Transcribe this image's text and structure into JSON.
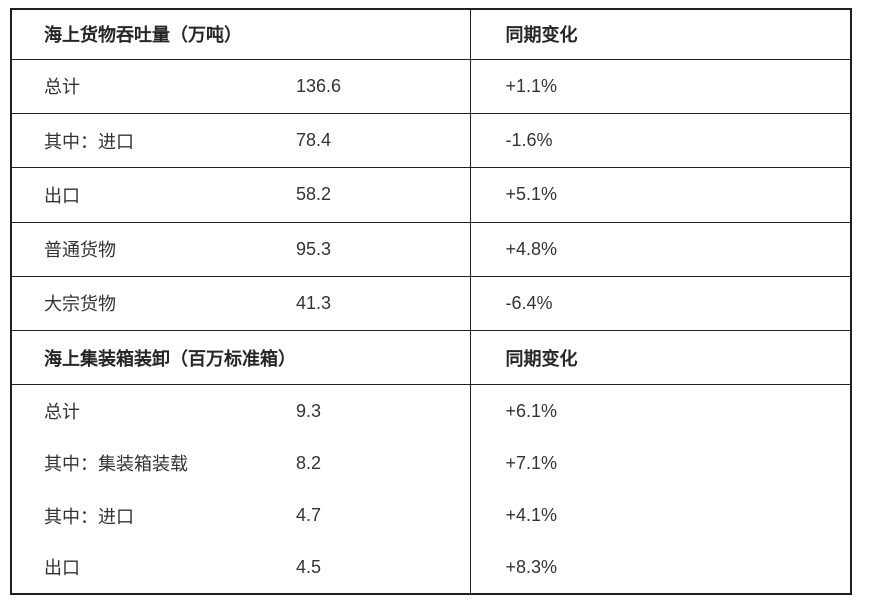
{
  "colors": {
    "background": "#ffffff",
    "border": "#1f1f1f",
    "text": "#333333",
    "header_text": "#262626"
  },
  "table": {
    "sections": [
      {
        "header": {
          "title": "海上货物吞吐量（万吨）",
          "change_label": "同期变化"
        },
        "rows": [
          {
            "label": "总计",
            "value": "136.6",
            "change": "+1.1%"
          },
          {
            "label": "其中：进口",
            "value": "78.4",
            "change": "-1.6%"
          },
          {
            "label": "出口",
            "value": "58.2",
            "change": "+5.1%"
          },
          {
            "label": "普通货物",
            "value": "95.3",
            "change": "+4.8%"
          },
          {
            "label": "大宗货物",
            "value": "41.3",
            "change": "-6.4%"
          }
        ]
      },
      {
        "header": {
          "title": "海上集装箱装卸（百万标准箱）",
          "change_label": "同期变化"
        },
        "rows": [
          {
            "label": "总计",
            "value": "9.3",
            "change": "+6.1%"
          },
          {
            "label": "其中：集装箱装载",
            "value": "8.2",
            "change": "+7.1%"
          },
          {
            "label": "其中：进口",
            "value": "4.7",
            "change": "+4.1%"
          },
          {
            "label": "出口",
            "value": "4.5",
            "change": "+8.3%"
          }
        ]
      }
    ]
  },
  "chart_data": {
    "type": "table",
    "sections": [
      {
        "header": [
          "海上货物吞吐量（万吨）",
          "同期变化"
        ],
        "rows": [
          [
            "总计",
            136.6,
            "+1.1%"
          ],
          [
            "其中：进口",
            78.4,
            "-1.6%"
          ],
          [
            "出口",
            58.2,
            "+5.1%"
          ],
          [
            "普通货物",
            95.3,
            "+4.8%"
          ],
          [
            "大宗货物",
            41.3,
            "-6.4%"
          ]
        ]
      },
      {
        "header": [
          "海上集装箱装卸（百万标准箱）",
          "同期变化"
        ],
        "rows": [
          [
            "总计",
            9.3,
            "+6.1%"
          ],
          [
            "其中：集装箱装载",
            8.2,
            "+7.1%"
          ],
          [
            "其中：进口",
            4.7,
            "+4.1%"
          ],
          [
            "出口",
            4.5,
            "+8.3%"
          ]
        ]
      }
    ]
  }
}
